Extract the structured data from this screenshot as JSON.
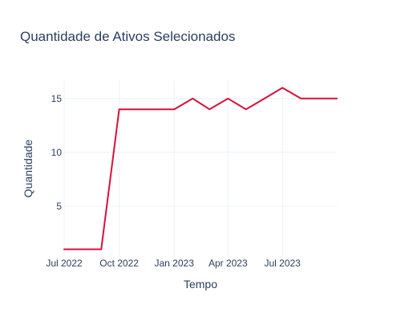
{
  "chart_data": {
    "type": "line",
    "title": "Quantidade de Ativos Selecionados",
    "xlabel": "Tempo",
    "ylabel": "Quantidade",
    "x_axis_type": "date",
    "x_range": [
      "2022-07-01",
      "2023-09-30"
    ],
    "y_range": [
      0.3,
      16.7
    ],
    "x_ticks": [
      {
        "date": "2022-07-01",
        "label": "Jul 2022"
      },
      {
        "date": "2022-10-01",
        "label": "Oct 2022"
      },
      {
        "date": "2023-01-01",
        "label": "Jan 2023"
      },
      {
        "date": "2023-04-01",
        "label": "Apr 2023"
      },
      {
        "date": "2023-07-01",
        "label": "Jul 2023"
      }
    ],
    "y_ticks": [
      5,
      10,
      15
    ],
    "grid": true,
    "legend": false,
    "line_color": "#d6113a",
    "series": [
      {
        "x": [
          "2022-07-01",
          "2022-08-01",
          "2022-09-01",
          "2022-10-01",
          "2022-11-01",
          "2022-12-01",
          "2023-01-01",
          "2023-02-01",
          "2023-03-01",
          "2023-04-01",
          "2023-05-01",
          "2023-06-01",
          "2023-07-01",
          "2023-08-01",
          "2023-09-01",
          "2023-09-30"
        ],
        "y": [
          1,
          1,
          1,
          14,
          14,
          14,
          14,
          15,
          14,
          15,
          14,
          15,
          16,
          15,
          15,
          15
        ]
      }
    ]
  }
}
